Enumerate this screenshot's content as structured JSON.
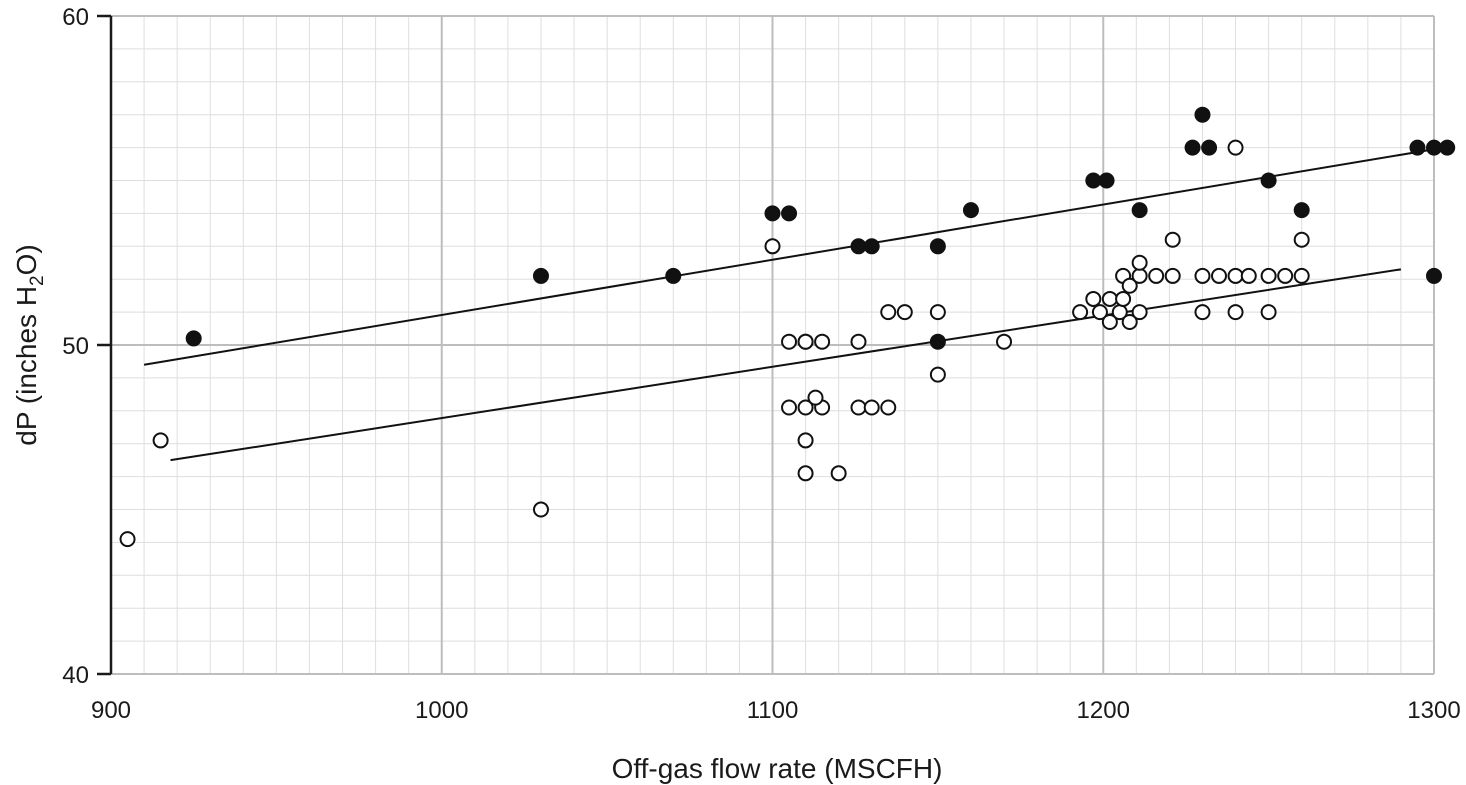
{
  "chart_data": {
    "type": "scatter",
    "title": "",
    "xlabel": "Off-gas flow rate (MSCFH)",
    "ylabel": {
      "prefix": "dP (inches H",
      "subscript": "2",
      "suffix": "O)"
    },
    "xlim": [
      900,
      1300
    ],
    "ylim": [
      40,
      60
    ],
    "x_ticks": [
      900,
      1000,
      1100,
      1200,
      1300
    ],
    "y_ticks": [
      40,
      50,
      60
    ],
    "x_tick_labels": [
      "900",
      "1000",
      "1100",
      "1200",
      "1300"
    ],
    "y_tick_labels": [
      "40",
      "50",
      "60"
    ],
    "grid": true,
    "minor_grid": true,
    "legend": false,
    "colors": {
      "axis": "#1a1a1a",
      "major_grid": "#bdbdbd",
      "minor_grid": "#dedede",
      "marker_edge": "#111111",
      "filled_marker": "#111111",
      "open_marker": "#ffffff",
      "trend_line": "#111111"
    },
    "series": [
      {
        "marker": "filled-circle",
        "points": [
          [
            925,
            50.2
          ],
          [
            1030,
            52.1
          ],
          [
            1070,
            52.1
          ],
          [
            1100,
            54.0
          ],
          [
            1105,
            54.0
          ],
          [
            1110,
            50.1
          ],
          [
            1126,
            53.0
          ],
          [
            1130,
            53.0
          ],
          [
            1150,
            53.0
          ],
          [
            1150,
            50.1
          ],
          [
            1160,
            54.1
          ],
          [
            1197,
            55.0
          ],
          [
            1201,
            55.0
          ],
          [
            1211,
            54.1
          ],
          [
            1227,
            56.0
          ],
          [
            1230,
            57.0
          ],
          [
            1232,
            56.0
          ],
          [
            1250,
            55.0
          ],
          [
            1260,
            54.1
          ],
          [
            1295,
            56.0
          ],
          [
            1300,
            56.0
          ],
          [
            1304,
            56.0
          ],
          [
            1300,
            52.1
          ]
        ],
        "trendline": [
          [
            910,
            49.4
          ],
          [
            1303,
            56.0
          ]
        ]
      },
      {
        "marker": "open-circle",
        "points": [
          [
            905,
            44.1
          ],
          [
            915,
            47.1
          ],
          [
            1030,
            45.0
          ],
          [
            1100,
            53.0
          ],
          [
            1105,
            50.1
          ],
          [
            1110,
            50.1
          ],
          [
            1115,
            50.1
          ],
          [
            1105,
            48.1
          ],
          [
            1110,
            48.1
          ],
          [
            1115,
            48.1
          ],
          [
            1113,
            48.4
          ],
          [
            1110,
            47.1
          ],
          [
            1110,
            46.1
          ],
          [
            1120,
            46.1
          ],
          [
            1126,
            50.1
          ],
          [
            1126,
            48.1
          ],
          [
            1130,
            48.1
          ],
          [
            1135,
            48.1
          ],
          [
            1135,
            51.0
          ],
          [
            1140,
            51.0
          ],
          [
            1150,
            51.0
          ],
          [
            1150,
            49.1
          ],
          [
            1170,
            50.1
          ],
          [
            1193,
            51.0
          ],
          [
            1197,
            51.4
          ],
          [
            1199,
            51.0
          ],
          [
            1202,
            51.4
          ],
          [
            1202,
            50.7
          ],
          [
            1205,
            51.0
          ],
          [
            1206,
            51.4
          ],
          [
            1206,
            52.1
          ],
          [
            1208,
            50.7
          ],
          [
            1208,
            51.8
          ],
          [
            1211,
            52.1
          ],
          [
            1211,
            52.5
          ],
          [
            1211,
            51.0
          ],
          [
            1216,
            52.1
          ],
          [
            1221,
            52.1
          ],
          [
            1221,
            53.2
          ],
          [
            1230,
            52.1
          ],
          [
            1230,
            51.0
          ],
          [
            1235,
            52.1
          ],
          [
            1240,
            52.1
          ],
          [
            1240,
            51.0
          ],
          [
            1240,
            56.0
          ],
          [
            1244,
            52.1
          ],
          [
            1250,
            52.1
          ],
          [
            1250,
            51.0
          ],
          [
            1255,
            52.1
          ],
          [
            1260,
            52.1
          ],
          [
            1260,
            53.2
          ]
        ],
        "trendline": [
          [
            918,
            46.5
          ],
          [
            1290,
            52.3
          ]
        ]
      }
    ]
  }
}
